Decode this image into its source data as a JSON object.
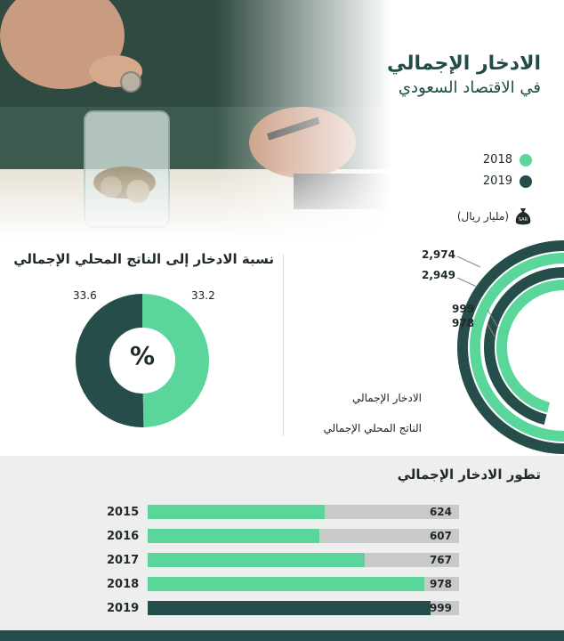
{
  "header": {
    "title_line1": "الادخار الإجمالي",
    "title_line2": "في الاقتصاد السعودي"
  },
  "colors": {
    "2018": "#5bd69a",
    "2019": "#254d49",
    "track": "#c9c9c9"
  },
  "legend": [
    {
      "label": "2018",
      "color": "#5bd69a"
    },
    {
      "label": "2019",
      "color": "#254d49"
    }
  ],
  "unit_label": "(مليار ريال)",
  "bag_label": "SAR",
  "chart_data": [
    {
      "type": "radial-bar",
      "series": [
        {
          "name": "2019",
          "values": [
            2974,
            999
          ]
        },
        {
          "name": "2018",
          "values": [
            2949,
            978
          ]
        }
      ],
      "categories": [
        "الناتج المحلي الإجمالي",
        "الادخار الإجمالي"
      ],
      "value_labels": [
        "2,974",
        "2,949",
        "999",
        "978"
      ],
      "legend_items": [
        "الادخار الإجمالي",
        "الناتج المحلي الإجمالي"
      ]
    },
    {
      "type": "pie",
      "title": "نسبة الادخار إلى الناتج المحلي الإجمالي",
      "center_label": "%",
      "slices": [
        {
          "name": "2018",
          "value": 33.2,
          "label": "33.2"
        },
        {
          "name": "2019",
          "value": 33.6,
          "label": "33.6"
        }
      ]
    },
    {
      "type": "bar",
      "title": "تطور الادخار الإجمالي",
      "categories": [
        "2015",
        "2016",
        "2017",
        "2018",
        "2019"
      ],
      "values": [
        624,
        607,
        767,
        978,
        999
      ],
      "value_labels": [
        "624",
        "607",
        "767",
        "978",
        "999"
      ]
    }
  ]
}
